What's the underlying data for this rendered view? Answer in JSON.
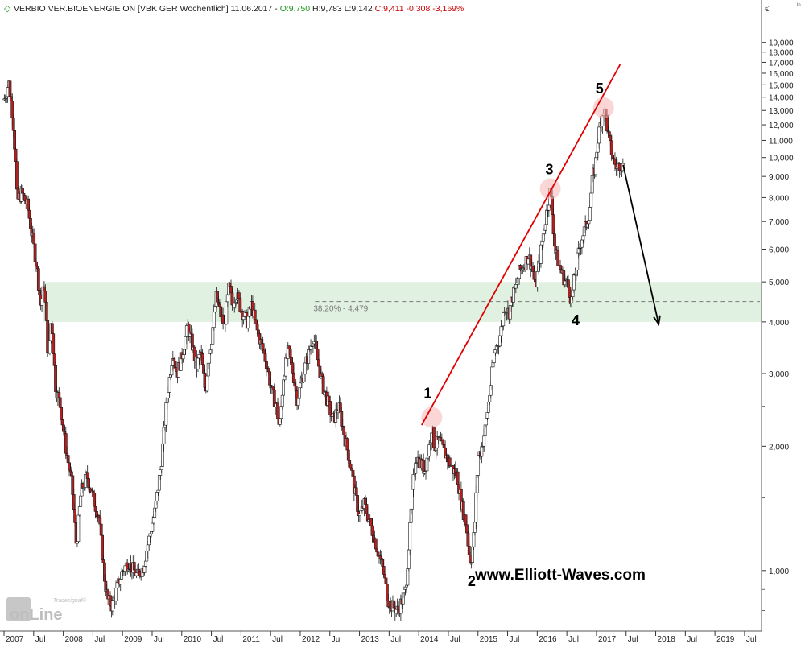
{
  "header": {
    "icon": "diamond-marker-icon",
    "prefix": "VERBIO VER.BIOENERGIE  ON [VBK GER  Wöchentlich] 11.06.2017 - ",
    "open": "O:9,750",
    "hl": " H:9,783 L:9,142 ",
    "close": "C:9,411 -0,308 -3,169%",
    "colors": {
      "text": "#222222",
      "open": "#1a9a1a",
      "close": "#cc0000"
    }
  },
  "currency": "€",
  "corner_mark": "ln",
  "watermark": {
    "brand_small": "Tradesignal®",
    "brand_big": "onLine"
  },
  "website": "www.Elliott-Waves.com",
  "fib_label": "38,20% - 4,479",
  "waves": [
    "1",
    "2",
    "3",
    "4",
    "5"
  ],
  "chart_data": {
    "type": "candlestick",
    "title": "VERBIO VER.BIOENERGIE  ON [VBK GER  Wöchentlich]",
    "y_scale": "log",
    "ylim": [
      0.72,
      22.0
    ],
    "xlim": [
      2007.0,
      2019.8
    ],
    "y_ticks": [
      1,
      2,
      3,
      4,
      5,
      6,
      7,
      8,
      9,
      10,
      11,
      12,
      13,
      14,
      15,
      16,
      17,
      18,
      19
    ],
    "y_tick_labels": [
      "1,000",
      "2,000",
      "3,000",
      "4,000",
      "5,000",
      "6,000",
      "7,000",
      "8,000",
      "9,000",
      "10,000",
      "11,000",
      "12,000",
      "13,000",
      "14,000",
      "15,000",
      "16,000",
      "17,000",
      "18,000",
      "19,000"
    ],
    "x_ticks": [
      {
        "t": 2007.0,
        "label": "2007"
      },
      {
        "t": 2007.5,
        "label": "Jul"
      },
      {
        "t": 2008.0,
        "label": "2008"
      },
      {
        "t": 2008.5,
        "label": "Jul"
      },
      {
        "t": 2009.0,
        "label": "2009"
      },
      {
        "t": 2009.5,
        "label": "Jul"
      },
      {
        "t": 2010.0,
        "label": "2010"
      },
      {
        "t": 2010.5,
        "label": "Jul"
      },
      {
        "t": 2011.0,
        "label": "2011"
      },
      {
        "t": 2011.5,
        "label": "Jul"
      },
      {
        "t": 2012.0,
        "label": "2012"
      },
      {
        "t": 2012.5,
        "label": "Jul"
      },
      {
        "t": 2013.0,
        "label": "2013"
      },
      {
        "t": 2013.5,
        "label": "Jul"
      },
      {
        "t": 2014.0,
        "label": "2014"
      },
      {
        "t": 2014.5,
        "label": "Jul"
      },
      {
        "t": 2015.0,
        "label": "2015"
      },
      {
        "t": 2015.5,
        "label": "Jul"
      },
      {
        "t": 2016.0,
        "label": "2016"
      },
      {
        "t": 2016.5,
        "label": "Jul"
      },
      {
        "t": 2017.0,
        "label": "2017"
      },
      {
        "t": 2017.5,
        "label": "Jul"
      },
      {
        "t": 2018.0,
        "label": "2018"
      },
      {
        "t": 2018.5,
        "label": "Jul"
      },
      {
        "t": 2019.0,
        "label": "2019"
      },
      {
        "t": 2019.5,
        "label": "Jul"
      }
    ],
    "price_path": [
      [
        2007.0,
        13.8
      ],
      [
        2007.08,
        15.2
      ],
      [
        2007.15,
        12.6
      ],
      [
        2007.2,
        9.5
      ],
      [
        2007.22,
        7.8
      ],
      [
        2007.25,
        8.0
      ],
      [
        2007.3,
        8.2
      ],
      [
        2007.4,
        7.6
      ],
      [
        2007.55,
        5.5
      ],
      [
        2007.62,
        4.4
      ],
      [
        2007.68,
        4.9
      ],
      [
        2007.75,
        3.2
      ],
      [
        2007.8,
        4.1
      ],
      [
        2007.87,
        2.8
      ],
      [
        2007.95,
        2.5
      ],
      [
        2008.05,
        1.95
      ],
      [
        2008.15,
        1.6
      ],
      [
        2008.22,
        1.15
      ],
      [
        2008.3,
        1.55
      ],
      [
        2008.4,
        1.7
      ],
      [
        2008.5,
        1.5
      ],
      [
        2008.6,
        1.35
      ],
      [
        2008.7,
        0.95
      ],
      [
        2008.75,
        0.85
      ],
      [
        2008.82,
        0.82
      ],
      [
        2008.9,
        0.9
      ],
      [
        2009.0,
        1.0
      ],
      [
        2009.1,
        1.05
      ],
      [
        2009.25,
        0.97
      ],
      [
        2009.35,
        1.02
      ],
      [
        2009.45,
        1.2
      ],
      [
        2009.55,
        1.4
      ],
      [
        2009.65,
        1.8
      ],
      [
        2009.75,
        2.6
      ],
      [
        2009.85,
        3.4
      ],
      [
        2009.92,
        3.0
      ],
      [
        2010.0,
        3.3
      ],
      [
        2010.1,
        3.9
      ],
      [
        2010.18,
        3.5
      ],
      [
        2010.25,
        3.1
      ],
      [
        2010.32,
        3.4
      ],
      [
        2010.4,
        2.7
      ],
      [
        2010.45,
        3.3
      ],
      [
        2010.5,
        3.6
      ],
      [
        2010.58,
        4.6
      ],
      [
        2010.65,
        4.2
      ],
      [
        2010.72,
        3.9
      ],
      [
        2010.8,
        4.9
      ],
      [
        2010.85,
        4.4
      ],
      [
        2010.92,
        4.7
      ],
      [
        2011.0,
        4.3
      ],
      [
        2011.1,
        4.0
      ],
      [
        2011.18,
        4.4
      ],
      [
        2011.25,
        3.9
      ],
      [
        2011.35,
        3.5
      ],
      [
        2011.45,
        3.1
      ],
      [
        2011.52,
        2.7
      ],
      [
        2011.6,
        2.5
      ],
      [
        2011.65,
        2.2
      ],
      [
        2011.72,
        3.0
      ],
      [
        2011.8,
        3.4
      ],
      [
        2011.88,
        3.0
      ],
      [
        2011.95,
        2.6
      ],
      [
        2012.05,
        3.0
      ],
      [
        2012.15,
        3.4
      ],
      [
        2012.22,
        3.7
      ],
      [
        2012.3,
        3.2
      ],
      [
        2012.38,
        2.8
      ],
      [
        2012.45,
        2.6
      ],
      [
        2012.55,
        2.3
      ],
      [
        2012.65,
        2.5
      ],
      [
        2012.75,
        2.1
      ],
      [
        2012.85,
        1.8
      ],
      [
        2012.92,
        1.55
      ],
      [
        2013.0,
        1.35
      ],
      [
        2013.08,
        1.45
      ],
      [
        2013.18,
        1.3
      ],
      [
        2013.25,
        1.2
      ],
      [
        2013.32,
        1.1
      ],
      [
        2013.4,
        1.0
      ],
      [
        2013.48,
        0.85
      ],
      [
        2013.55,
        0.82
      ],
      [
        2013.65,
        0.8
      ],
      [
        2013.72,
        0.85
      ],
      [
        2013.78,
        0.9
      ],
      [
        2013.85,
        1.25
      ],
      [
        2013.9,
        1.6
      ],
      [
        2013.95,
        1.9
      ],
      [
        2014.05,
        1.8
      ],
      [
        2014.1,
        1.75
      ],
      [
        2014.18,
        2.0
      ],
      [
        2014.22,
        2.25
      ],
      [
        2014.26,
        2.0
      ],
      [
        2014.35,
        2.05
      ],
      [
        2014.42,
        1.95
      ],
      [
        2014.5,
        1.85
      ],
      [
        2014.58,
        1.75
      ],
      [
        2014.65,
        1.7
      ],
      [
        2014.72,
        1.45
      ],
      [
        2014.8,
        1.3
      ],
      [
        2014.85,
        1.1
      ],
      [
        2014.88,
        1.05
      ],
      [
        2014.94,
        1.25
      ],
      [
        2015.0,
        1.9
      ],
      [
        2015.05,
        1.95
      ],
      [
        2015.12,
        2.2
      ],
      [
        2015.2,
        2.7
      ],
      [
        2015.28,
        3.4
      ],
      [
        2015.35,
        3.6
      ],
      [
        2015.4,
        3.9
      ],
      [
        2015.45,
        4.4
      ],
      [
        2015.52,
        4.2
      ],
      [
        2015.58,
        4.6
      ],
      [
        2015.65,
        4.9
      ],
      [
        2015.7,
        5.3
      ],
      [
        2015.78,
        5.5
      ],
      [
        2015.85,
        5.8
      ],
      [
        2015.92,
        5.4
      ],
      [
        2015.97,
        4.8
      ],
      [
        2016.05,
        5.8
      ],
      [
        2016.1,
        6.5
      ],
      [
        2016.18,
        7.7
      ],
      [
        2016.22,
        8.3
      ],
      [
        2016.25,
        7.5
      ],
      [
        2016.3,
        6.0
      ],
      [
        2016.38,
        5.4
      ],
      [
        2016.45,
        5.1
      ],
      [
        2016.52,
        4.9
      ],
      [
        2016.58,
        4.5
      ],
      [
        2016.62,
        5.0
      ],
      [
        2016.68,
        5.7
      ],
      [
        2016.75,
        6.4
      ],
      [
        2016.82,
        6.8
      ],
      [
        2016.88,
        7.4
      ],
      [
        2016.93,
        8.8
      ],
      [
        2016.98,
        9.6
      ],
      [
        2017.02,
        11.0
      ],
      [
        2017.07,
        12.2
      ],
      [
        2017.12,
        13.1
      ],
      [
        2017.16,
        12.5
      ],
      [
        2017.2,
        11.2
      ],
      [
        2017.25,
        10.4
      ],
      [
        2017.3,
        9.7
      ],
      [
        2017.35,
        9.4
      ],
      [
        2017.4,
        9.7
      ],
      [
        2017.45,
        9.5
      ]
    ],
    "wave_points": [
      {
        "label": "1",
        "t": 2014.22,
        "v": 2.35
      },
      {
        "label": "2",
        "t": 2014.88,
        "v": 1.05
      },
      {
        "label": "3",
        "t": 2016.22,
        "v": 8.4
      },
      {
        "label": "4",
        "t": 2016.58,
        "v": 4.45
      },
      {
        "label": "5",
        "t": 2017.12,
        "v": 13.2
      }
    ],
    "trendline": {
      "from": [
        2014.05,
        2.25
      ],
      "to": [
        2017.4,
        16.8
      ]
    },
    "projection_arrow": {
      "from": [
        2017.45,
        9.6
      ],
      "to": [
        2018.05,
        3.95
      ]
    },
    "support_zone": {
      "from": 4.0,
      "to": 5.0,
      "t_start": 2007.0,
      "t_end": 2019.8
    },
    "fib_level": {
      "label": "38,20% - 4,479",
      "value": 4.479,
      "t_start": 2012.25
    },
    "colors": {
      "candle_up": "#ffffff",
      "candle_down": "#b02222",
      "candle_outline": "#1a1a1a",
      "trendline": "#e00000",
      "zone": "#dcefdc",
      "arrow": "#000000",
      "highlight": "#f5b5b5"
    }
  }
}
